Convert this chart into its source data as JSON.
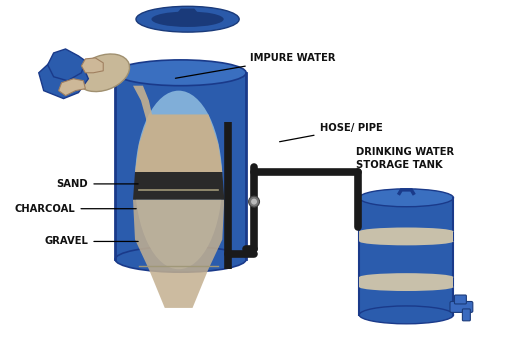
{
  "bg_color": "#ffffff",
  "blue_barrel": "#2b5cad",
  "blue_dark": "#1a3a8a",
  "blue_mid": "#3a6fc0",
  "blue_lid_top": "#3a6abf",
  "sand_color": "#c4b090",
  "charcoal_color": "#2a2a2a",
  "gravel_color": "#b8a888",
  "pipe_color": "#1a1a1a",
  "hand_blue": "#2b5cad",
  "hand_skin": "#cdb898",
  "text_color": "#111111",
  "interior_blue": "#7aacda",
  "labels": {
    "impure_water": "IMPURE WATER",
    "hose_pipe": "HOSE/ PIPE",
    "sand": "SAND",
    "charcoal": "CHARCOAL",
    "gravel": "GRAVEL",
    "storage_tank": "DRINKING WATER\nSTORAGE TANK"
  },
  "figsize": [
    5.12,
    3.44
  ],
  "dpi": 100
}
